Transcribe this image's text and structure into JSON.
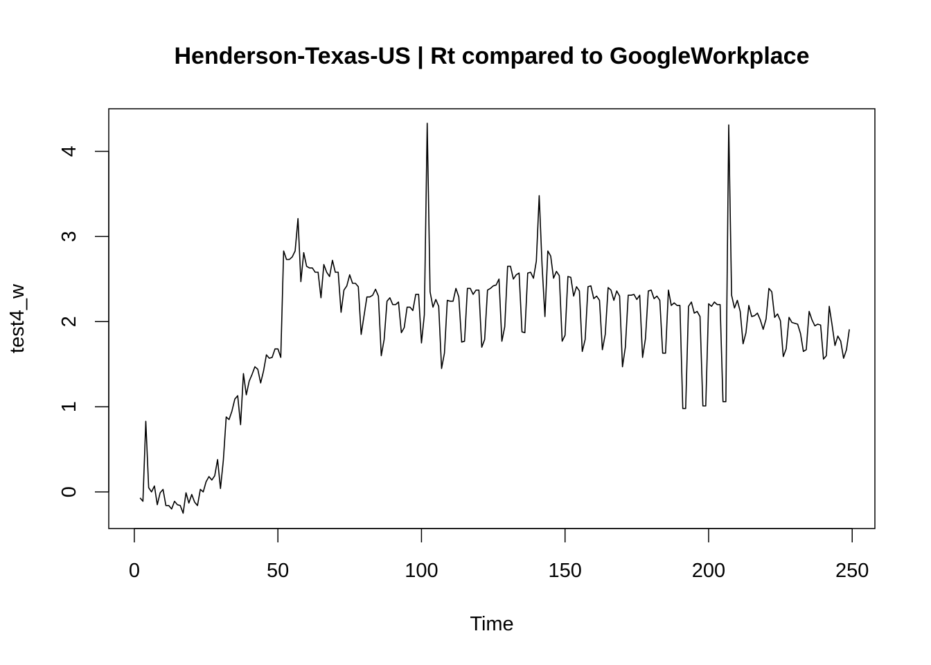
{
  "chart_data": {
    "type": "line",
    "title": "Henderson-Texas-US | Rt compared to GoogleWorkplace",
    "xlabel": "Time",
    "ylabel": "test4_w",
    "xlim": [
      -8.9,
      257.9
    ],
    "ylim": [
      -0.43,
      4.5
    ],
    "xticks": [
      0,
      50,
      100,
      150,
      200,
      250
    ],
    "yticks": [
      0,
      1,
      2,
      3,
      4
    ],
    "grid": false,
    "legend": "none",
    "line_color": "#000000",
    "x_start": 2,
    "values": [
      -0.07,
      -0.11,
      0.83,
      0.05,
      0.0,
      0.07,
      -0.15,
      -0.01,
      0.03,
      -0.16,
      -0.16,
      -0.2,
      -0.11,
      -0.15,
      -0.16,
      -0.25,
      -0.01,
      -0.13,
      -0.03,
      -0.12,
      -0.16,
      0.03,
      0.0,
      0.12,
      0.18,
      0.14,
      0.19,
      0.38,
      0.04,
      0.37,
      0.88,
      0.85,
      0.95,
      1.09,
      1.13,
      0.79,
      1.39,
      1.14,
      1.3,
      1.38,
      1.47,
      1.44,
      1.28,
      1.42,
      1.61,
      1.57,
      1.58,
      1.68,
      1.68,
      1.58,
      2.83,
      2.73,
      2.73,
      2.76,
      2.83,
      3.21,
      2.47,
      2.81,
      2.65,
      2.63,
      2.63,
      2.58,
      2.58,
      2.28,
      2.67,
      2.58,
      2.53,
      2.72,
      2.58,
      2.58,
      2.11,
      2.37,
      2.42,
      2.55,
      2.45,
      2.45,
      2.41,
      1.85,
      2.07,
      2.29,
      2.29,
      2.31,
      2.38,
      2.3,
      1.6,
      1.79,
      2.24,
      2.28,
      2.2,
      2.2,
      2.23,
      1.87,
      1.93,
      2.17,
      2.17,
      2.13,
      2.32,
      2.32,
      1.75,
      2.08,
      4.33,
      2.35,
      2.17,
      2.26,
      2.18,
      1.45,
      1.63,
      2.25,
      2.24,
      2.24,
      2.39,
      2.29,
      1.76,
      1.77,
      2.39,
      2.39,
      2.32,
      2.37,
      2.37,
      1.7,
      1.79,
      2.37,
      2.39,
      2.42,
      2.43,
      2.5,
      1.77,
      1.94,
      2.65,
      2.65,
      2.5,
      2.55,
      2.57,
      1.88,
      1.87,
      2.57,
      2.58,
      2.51,
      2.71,
      3.48,
      2.66,
      2.06,
      2.83,
      2.77,
      2.51,
      2.59,
      2.54,
      1.77,
      1.84,
      2.53,
      2.52,
      2.3,
      2.41,
      2.36,
      1.65,
      1.79,
      2.41,
      2.42,
      2.27,
      2.3,
      2.25,
      1.67,
      1.85,
      2.4,
      2.37,
      2.25,
      2.36,
      2.3,
      1.47,
      1.7,
      2.31,
      2.31,
      2.32,
      2.26,
      2.31,
      1.58,
      1.8,
      2.36,
      2.37,
      2.27,
      2.3,
      2.25,
      1.63,
      1.63,
      2.37,
      2.19,
      2.22,
      2.19,
      2.19,
      0.98,
      0.98,
      2.18,
      2.23,
      2.1,
      2.12,
      2.06,
      1.01,
      1.01,
      2.21,
      2.18,
      2.23,
      2.2,
      2.2,
      1.06,
      1.06,
      4.31,
      2.31,
      2.16,
      2.25,
      2.12,
      1.74,
      1.87,
      2.19,
      2.06,
      2.07,
      2.1,
      2.02,
      1.91,
      2.03,
      2.39,
      2.35,
      2.05,
      2.09,
      2.01,
      1.59,
      1.68,
      2.05,
      1.99,
      1.98,
      1.97,
      1.86,
      1.65,
      1.67,
      2.12,
      2.02,
      1.95,
      1.97,
      1.96,
      1.56,
      1.6,
      2.18,
      1.96,
      1.72,
      1.83,
      1.77,
      1.57,
      1.67,
      1.91
    ]
  }
}
